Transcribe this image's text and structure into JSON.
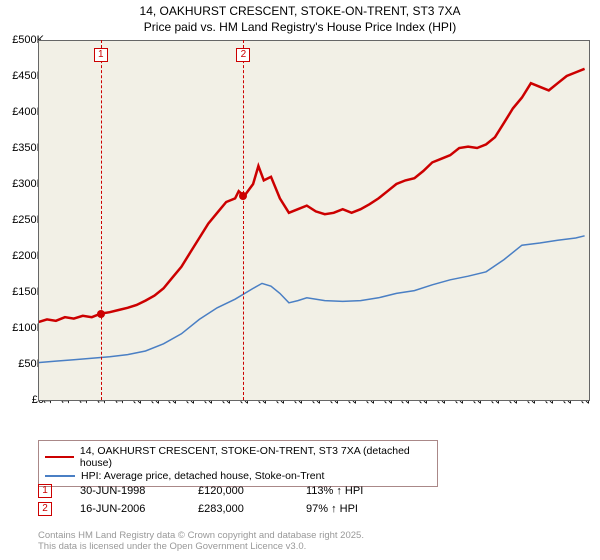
{
  "title": {
    "line1": "14, OAKHURST CRESCENT, STOKE-ON-TRENT, ST3 7XA",
    "line2": "Price paid vs. HM Land Registry's House Price Index (HPI)"
  },
  "chart": {
    "type": "line",
    "background_color": "#f2f0e6",
    "grid_color": "#ffffff",
    "axis_color": "#666666",
    "ylim": [
      0,
      500000
    ],
    "ytick_step": 50000,
    "ytick_labels": [
      "£0",
      "£50K",
      "£100K",
      "£150K",
      "£200K",
      "£250K",
      "£300K",
      "£350K",
      "£400K",
      "£450K",
      "£500K"
    ],
    "xlim": [
      1995,
      2025.8
    ],
    "xticks": [
      1995,
      1996,
      1997,
      1998,
      1999,
      2000,
      2001,
      2002,
      2003,
      2004,
      2005,
      2006,
      2007,
      2008,
      2009,
      2010,
      2011,
      2012,
      2013,
      2014,
      2015,
      2016,
      2017,
      2018,
      2019,
      2020,
      2021,
      2022,
      2023,
      2024,
      2025
    ],
    "series": [
      {
        "name": "property",
        "label": "14, OAKHURST CRESCENT, STOKE-ON-TRENT, ST3 7XA (detached house)",
        "color": "#cc0000",
        "line_width": 2.5,
        "points": [
          [
            1995,
            108000
          ],
          [
            1995.5,
            112000
          ],
          [
            1996,
            110000
          ],
          [
            1996.5,
            115000
          ],
          [
            1997,
            113000
          ],
          [
            1997.5,
            117000
          ],
          [
            1998,
            115000
          ],
          [
            1998.5,
            120000
          ],
          [
            1999,
            122000
          ],
          [
            1999.5,
            125000
          ],
          [
            2000,
            128000
          ],
          [
            2000.5,
            132000
          ],
          [
            2001,
            138000
          ],
          [
            2001.5,
            145000
          ],
          [
            2002,
            155000
          ],
          [
            2002.5,
            170000
          ],
          [
            2003,
            185000
          ],
          [
            2003.5,
            205000
          ],
          [
            2004,
            225000
          ],
          [
            2004.5,
            245000
          ],
          [
            2005,
            260000
          ],
          [
            2005.5,
            275000
          ],
          [
            2006,
            280000
          ],
          [
            2006.2,
            290000
          ],
          [
            2006.5,
            283000
          ],
          [
            2007,
            300000
          ],
          [
            2007.3,
            325000
          ],
          [
            2007.6,
            305000
          ],
          [
            2008,
            310000
          ],
          [
            2008.5,
            280000
          ],
          [
            2009,
            260000
          ],
          [
            2009.5,
            265000
          ],
          [
            2010,
            270000
          ],
          [
            2010.5,
            262000
          ],
          [
            2011,
            258000
          ],
          [
            2011.5,
            260000
          ],
          [
            2012,
            265000
          ],
          [
            2012.5,
            260000
          ],
          [
            2013,
            265000
          ],
          [
            2013.5,
            272000
          ],
          [
            2014,
            280000
          ],
          [
            2014.5,
            290000
          ],
          [
            2015,
            300000
          ],
          [
            2015.5,
            305000
          ],
          [
            2016,
            308000
          ],
          [
            2016.5,
            318000
          ],
          [
            2017,
            330000
          ],
          [
            2017.5,
            335000
          ],
          [
            2018,
            340000
          ],
          [
            2018.5,
            350000
          ],
          [
            2019,
            352000
          ],
          [
            2019.5,
            350000
          ],
          [
            2020,
            355000
          ],
          [
            2020.5,
            365000
          ],
          [
            2021,
            385000
          ],
          [
            2021.5,
            405000
          ],
          [
            2022,
            420000
          ],
          [
            2022.5,
            440000
          ],
          [
            2023,
            435000
          ],
          [
            2023.5,
            430000
          ],
          [
            2024,
            440000
          ],
          [
            2024.5,
            450000
          ],
          [
            2025,
            455000
          ],
          [
            2025.5,
            460000
          ]
        ]
      },
      {
        "name": "hpi",
        "label": "HPI: Average price, detached house, Stoke-on-Trent",
        "color": "#4a7fc4",
        "line_width": 1.5,
        "points": [
          [
            1995,
            52000
          ],
          [
            1996,
            54000
          ],
          [
            1997,
            56000
          ],
          [
            1998,
            58000
          ],
          [
            1999,
            60000
          ],
          [
            2000,
            63000
          ],
          [
            2001,
            68000
          ],
          [
            2002,
            78000
          ],
          [
            2003,
            92000
          ],
          [
            2004,
            112000
          ],
          [
            2005,
            128000
          ],
          [
            2006,
            140000
          ],
          [
            2007,
            155000
          ],
          [
            2007.5,
            162000
          ],
          [
            2008,
            158000
          ],
          [
            2008.5,
            148000
          ],
          [
            2009,
            135000
          ],
          [
            2009.5,
            138000
          ],
          [
            2010,
            142000
          ],
          [
            2011,
            138000
          ],
          [
            2012,
            137000
          ],
          [
            2013,
            138000
          ],
          [
            2014,
            142000
          ],
          [
            2015,
            148000
          ],
          [
            2016,
            152000
          ],
          [
            2017,
            160000
          ],
          [
            2018,
            167000
          ],
          [
            2019,
            172000
          ],
          [
            2020,
            178000
          ],
          [
            2021,
            195000
          ],
          [
            2022,
            215000
          ],
          [
            2023,
            218000
          ],
          [
            2024,
            222000
          ],
          [
            2025,
            225000
          ],
          [
            2025.5,
            228000
          ]
        ]
      }
    ],
    "sale_markers": [
      {
        "id": "1",
        "year": 1998.5,
        "price": 120000,
        "color": "#cc0000"
      },
      {
        "id": "2",
        "year": 2006.46,
        "price": 283000,
        "color": "#cc0000"
      }
    ]
  },
  "legend": {
    "border_color": "#a88878"
  },
  "sales": [
    {
      "id": "1",
      "date": "30-JUN-1998",
      "price": "£120,000",
      "delta": "113% ↑ HPI",
      "color": "#cc0000"
    },
    {
      "id": "2",
      "date": "16-JUN-2006",
      "price": "£283,000",
      "delta": "97% ↑ HPI",
      "color": "#cc0000"
    }
  ],
  "footer": {
    "line1": "Contains HM Land Registry data © Crown copyright and database right 2025.",
    "line2": "This data is licensed under the Open Government Licence v3.0."
  },
  "colors": {
    "text": "#000000",
    "footer_text": "#999999"
  }
}
